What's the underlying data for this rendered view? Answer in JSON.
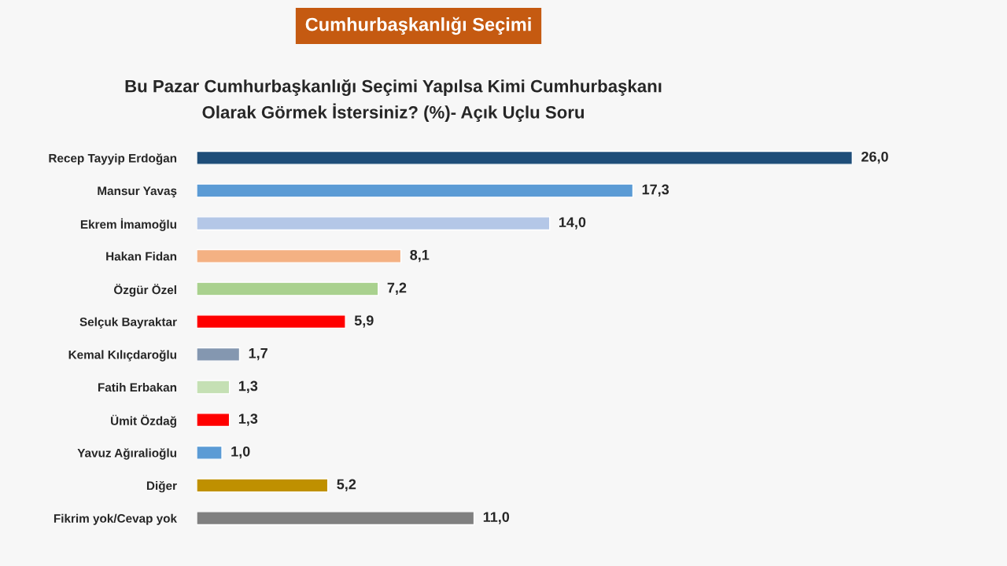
{
  "chart_data": {
    "type": "bar",
    "orientation": "horizontal",
    "title": "Cumhurbaşkanlığı Seçimi",
    "subtitle": "Bu Pazar Cumhurbaşkanlığı Seçimi Yapılsa Kimi Cumhurbaşkanı\nOlarak Görmek İstersiniz? (%)- Açık Uçlu Soru",
    "categories": [
      "Recep Tayyip Erdoğan",
      "Mansur Yavaş",
      "Ekrem İmamoğlu",
      "Hakan Fidan",
      "Özgür Özel",
      "Selçuk Bayraktar",
      "Kemal Kılıçdaroğlu",
      "Fatih Erbakan",
      "Ümit Özdağ",
      "Yavuz Ağıralioğlu",
      "Diğer",
      "Fikrim yok/Cevap yok"
    ],
    "values": [
      26.0,
      17.3,
      14.0,
      8.1,
      7.2,
      5.9,
      1.7,
      1.3,
      1.3,
      1.0,
      5.2,
      11.0
    ],
    "value_labels": [
      "26,0",
      "17,3",
      "14,0",
      "8,1",
      "7,2",
      "5,9",
      "1,7",
      "1,3",
      "1,3",
      "1,0",
      "5,2",
      "11,0"
    ],
    "colors": [
      "#1f4e79",
      "#5b9bd5",
      "#b4c7e7",
      "#f4b183",
      "#a9d18e",
      "#ff0000",
      "#8497b0",
      "#c5e0b4",
      "#ff0000",
      "#5b9bd5",
      "#bf9000",
      "#808080"
    ],
    "grid": false,
    "legend": false
  }
}
